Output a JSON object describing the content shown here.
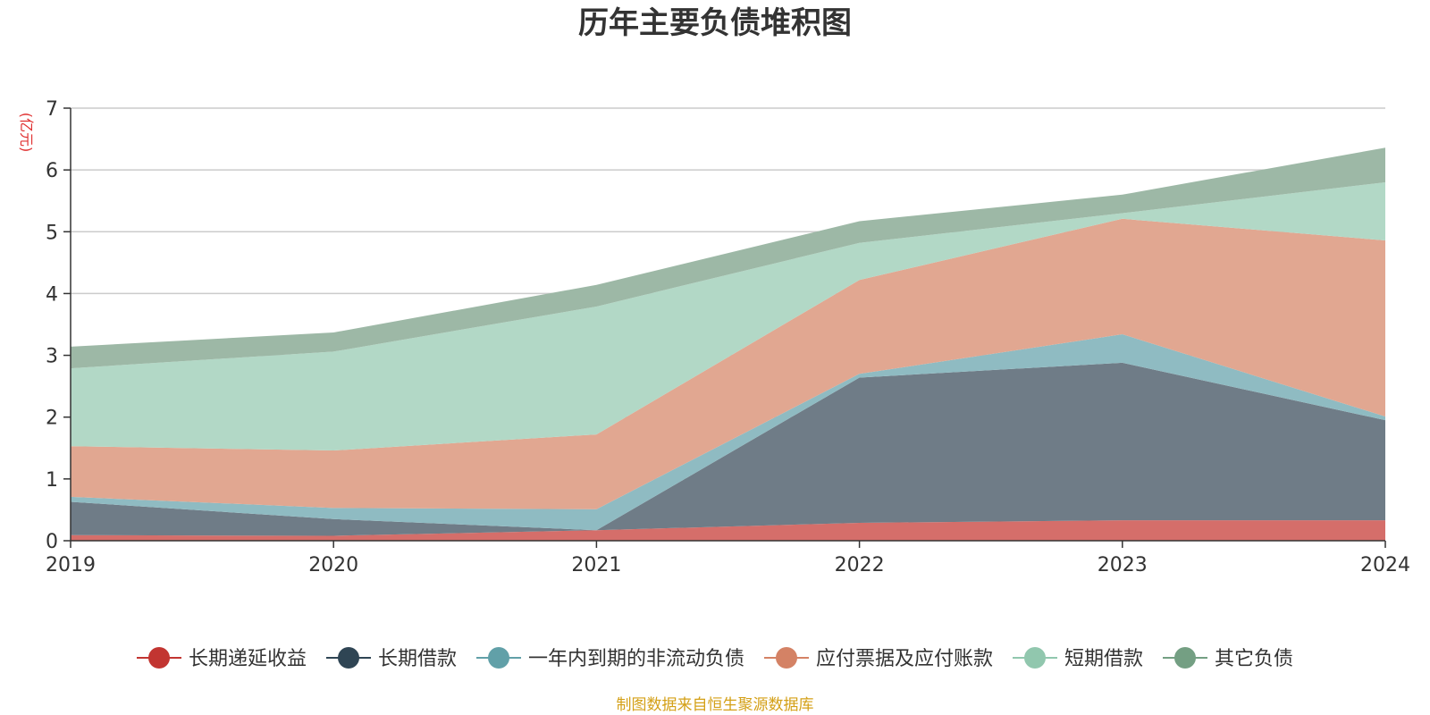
{
  "chart_data": {
    "type": "area",
    "stacked": true,
    "title": "历年主要负债堆积图",
    "unit_label": "(亿元)",
    "source": "制图数据来自恒生聚源数据库",
    "categories": [
      "2019",
      "2020",
      "2021",
      "2022",
      "2023",
      "2024"
    ],
    "ylim": [
      0,
      7
    ],
    "yticks": [
      0,
      1,
      2,
      3,
      4,
      5,
      6,
      7
    ],
    "grid": true,
    "legend_position": "bottom",
    "series": [
      {
        "name": "长期递延收益",
        "color": "#c23531",
        "fill": "#d56e6a",
        "values": [
          0.09,
          0.08,
          0.17,
          0.29,
          0.33,
          0.33
        ]
      },
      {
        "name": "长期借款",
        "color": "#2f4554",
        "fill": "#6f7c87",
        "values": [
          0.54,
          0.27,
          0.0,
          2.35,
          2.55,
          1.62
        ]
      },
      {
        "name": "一年内到期的非流动负债",
        "color": "#61a0a8",
        "fill": "#8fbbc2",
        "values": [
          0.08,
          0.18,
          0.34,
          0.06,
          0.46,
          0.06
        ]
      },
      {
        "name": "应付票据及应付账款",
        "color": "#d48265",
        "fill": "#e1a791",
        "values": [
          0.82,
          0.93,
          1.21,
          1.52,
          1.87,
          2.85
        ]
      },
      {
        "name": "短期借款",
        "color": "#91c7ae",
        "fill": "#b2d8c6",
        "values": [
          1.26,
          1.6,
          2.07,
          0.6,
          0.09,
          0.94
        ]
      },
      {
        "name": "其它负债",
        "color": "#749f83",
        "fill": "#9db8a6",
        "values": [
          0.35,
          0.31,
          0.35,
          0.35,
          0.3,
          0.56
        ]
      }
    ]
  }
}
